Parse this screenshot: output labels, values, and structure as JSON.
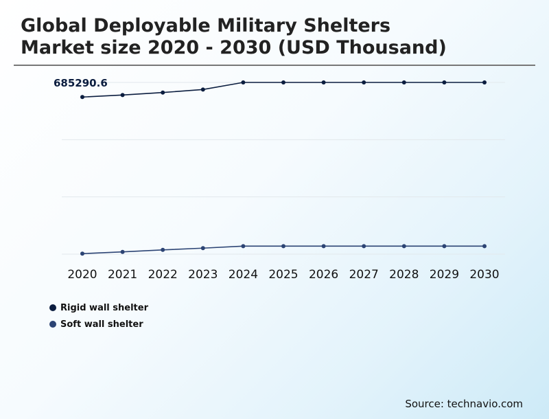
{
  "colors": {
    "rigid": "#0b1d3f",
    "soft": "#2c4474",
    "grid": "#e2e8ec",
    "text": "#111111"
  },
  "chart_data": {
    "type": "line",
    "title": "Global Deployable Military Shelters Market size 2020 - 2030 (USD Thousand)",
    "title_lines": [
      "Global Deployable Military Shelters",
      "Market size 2020 - 2030 (USD Thousand)"
    ],
    "xlabel": "",
    "ylabel": "",
    "categories": [
      "2020",
      "2021",
      "2022",
      "2023",
      "2024",
      "2025",
      "2026",
      "2027",
      "2028",
      "2029",
      "2030"
    ],
    "ylim": [
      0,
      685290.6
    ],
    "grid": true,
    "annotation": "685290.6",
    "series": [
      {
        "name": "Rigid wall shelter",
        "values": [
          627000,
          635000,
          645000,
          657000,
          685290.6,
          685290.6,
          685290.6,
          685290.6,
          685290.6,
          685290.6,
          685290.6
        ]
      },
      {
        "name": "Soft wall shelter",
        "values": [
          2000,
          9000,
          17000,
          24000,
          32000,
          32000,
          32000,
          32000,
          32000,
          32000,
          32000
        ]
      }
    ],
    "legend_position": "bottom-left",
    "source": "Source: technavio.com"
  }
}
